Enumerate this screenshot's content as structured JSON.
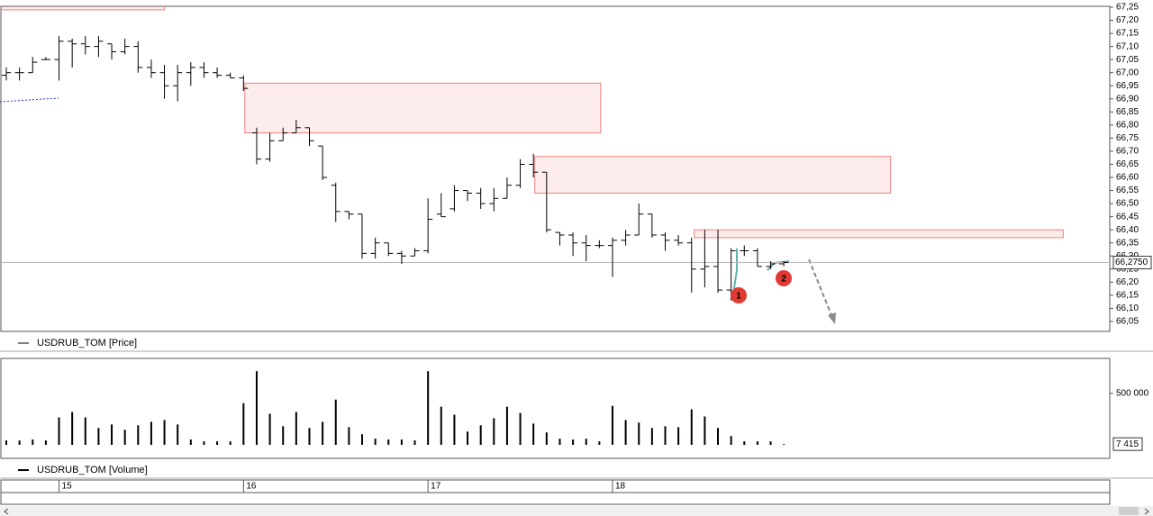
{
  "chart_data": [
    {
      "type": "ohlc",
      "categories": [
        null,
        null,
        null,
        null,
        "15",
        null,
        null,
        null,
        null,
        null,
        null,
        null,
        null,
        null,
        null,
        null,
        null,
        null,
        "16",
        null,
        null,
        null,
        null,
        null,
        null,
        null,
        null,
        null,
        null,
        null,
        null,
        null,
        "17",
        null,
        null,
        null,
        null,
        null,
        null,
        null,
        null,
        null,
        null,
        null,
        null,
        null,
        "18",
        null,
        null,
        null,
        null,
        null,
        null,
        null,
        null,
        null,
        null,
        null,
        null,
        null
      ],
      "series": [
        {
          "name": "USDRUB_TOM [Price]",
          "color": "#000000",
          "open": [
            66.99,
            67.0,
            67.0,
            67.05,
            67.05,
            67.12,
            67.11,
            67.1,
            67.11,
            67.08,
            67.1,
            67.02,
            67.0,
            66.95,
            67.0,
            67.02,
            67.0,
            66.99,
            66.98,
            66.77,
            66.67,
            66.74,
            66.77,
            66.79,
            66.72,
            66.57,
            66.47,
            66.46,
            66.31,
            66.35,
            66.31,
            66.3,
            66.32,
            66.46,
            66.48,
            66.55,
            66.54,
            66.5,
            66.52,
            66.57,
            66.65,
            66.62,
            66.39,
            66.38,
            66.35,
            66.34,
            66.34,
            66.36,
            66.38,
            66.46,
            66.38,
            66.36,
            66.35,
            66.25,
            66.26,
            66.17,
            66.32,
            66.32,
            66.26,
            66.27
          ],
          "high": [
            67.02,
            67.02,
            67.06,
            67.06,
            67.14,
            67.13,
            67.14,
            67.14,
            67.11,
            67.13,
            67.12,
            67.05,
            67.03,
            67.03,
            67.04,
            67.04,
            67.02,
            67.0,
            66.99,
            66.79,
            66.77,
            66.79,
            66.82,
            66.79,
            66.72,
            66.58,
            66.47,
            66.46,
            66.37,
            66.35,
            66.32,
            66.33,
            66.52,
            66.54,
            66.57,
            66.55,
            66.56,
            66.56,
            66.6,
            66.67,
            66.69,
            66.62,
            66.39,
            66.39,
            66.38,
            66.36,
            66.37,
            66.4,
            66.5,
            66.46,
            66.39,
            66.38,
            66.37,
            66.4,
            66.4,
            66.33,
            66.34,
            66.33,
            66.28,
            66.28
          ],
          "low": [
            66.97,
            66.97,
            67.0,
            67.05,
            66.97,
            67.02,
            67.07,
            67.06,
            67.05,
            67.07,
            67.0,
            66.98,
            66.9,
            66.89,
            66.95,
            66.98,
            66.98,
            66.98,
            66.93,
            66.65,
            66.66,
            66.74,
            66.77,
            66.72,
            66.59,
            66.43,
            66.44,
            66.29,
            66.29,
            66.3,
            66.27,
            66.3,
            66.31,
            66.45,
            66.47,
            66.51,
            66.48,
            66.47,
            66.52,
            66.56,
            66.6,
            66.39,
            66.34,
            66.3,
            66.28,
            66.33,
            66.22,
            66.34,
            66.38,
            66.37,
            66.32,
            66.34,
            66.16,
            66.18,
            66.16,
            66.13,
            66.3,
            66.26,
            66.25,
            66.26
          ],
          "close": [
            67.0,
            67.0,
            67.04,
            67.05,
            67.12,
            67.11,
            67.1,
            67.12,
            67.08,
            67.1,
            67.02,
            67.0,
            66.95,
            67.0,
            67.02,
            67.0,
            66.99,
            66.98,
            66.94,
            66.67,
            66.74,
            66.77,
            66.79,
            66.74,
            66.6,
            66.47,
            66.46,
            66.31,
            66.35,
            66.31,
            66.3,
            66.32,
            66.44,
            66.45,
            66.55,
            66.54,
            66.5,
            66.52,
            66.57,
            66.65,
            66.62,
            66.4,
            66.38,
            66.35,
            66.34,
            66.34,
            66.36,
            66.38,
            66.46,
            66.38,
            66.36,
            66.35,
            66.25,
            66.26,
            66.17,
            66.32,
            66.32,
            66.26,
            66.27,
            66.275
          ]
        }
      ],
      "ylim": [
        66.01,
        67.25
      ],
      "yticks": [
        {
          "value": 67.25,
          "label": "67,25"
        },
        {
          "value": 67.2,
          "label": "67,20"
        },
        {
          "value": 67.15,
          "label": "67,15"
        },
        {
          "value": 67.1,
          "label": "67,10"
        },
        {
          "value": 67.05,
          "label": "67,05"
        },
        {
          "value": 67.0,
          "label": "67,00"
        },
        {
          "value": 66.95,
          "label": "66,95"
        },
        {
          "value": 66.9,
          "label": "66,90"
        },
        {
          "value": 66.85,
          "label": "66,85"
        },
        {
          "value": 66.8,
          "label": "66,80"
        },
        {
          "value": 66.75,
          "label": "66,75"
        },
        {
          "value": 66.7,
          "label": "66,70"
        },
        {
          "value": 66.65,
          "label": "66,65"
        },
        {
          "value": 66.6,
          "label": "66,60"
        },
        {
          "value": 66.55,
          "label": "66,55"
        },
        {
          "value": 66.5,
          "label": "66,50"
        },
        {
          "value": 66.45,
          "label": "66,45"
        },
        {
          "value": 66.4,
          "label": "66,40"
        },
        {
          "value": 66.35,
          "label": "66,35"
        },
        {
          "value": 66.3,
          "label": "66,30"
        },
        {
          "value": 66.25,
          "label": "66,25"
        },
        {
          "value": 66.2,
          "label": "66,20"
        },
        {
          "value": 66.15,
          "label": "66,15"
        },
        {
          "value": 66.1,
          "label": "66,10"
        },
        {
          "value": 66.05,
          "label": "66,05"
        }
      ],
      "last_price": {
        "value": 66.275,
        "label": "66,2750"
      },
      "zones": [
        {
          "start": -0.5,
          "end": 12.0,
          "high": 67.28,
          "low": 67.24
        },
        {
          "start": 18.1,
          "end": 45.1,
          "high": 66.96,
          "low": 66.77
        },
        {
          "start": 40.1,
          "end": 67.1,
          "high": 66.68,
          "low": 66.54
        },
        {
          "start": 52.2,
          "end": 80.2,
          "high": 66.4,
          "low": 66.37
        }
      ],
      "annotations": [
        {
          "text": "1"
        },
        {
          "text": "2"
        }
      ]
    },
    {
      "type": "bar",
      "series": [
        {
          "name": "USDRUB_TOM [Volume]",
          "color": "#000000",
          "values": [
            43000,
            43000,
            52000,
            43000,
            267000,
            319000,
            267000,
            164000,
            198000,
            147000,
            190000,
            224000,
            241000,
            198000,
            52000,
            34000,
            34000,
            34000,
            405000,
            716000,
            302000,
            181000,
            319000,
            164000,
            224000,
            440000,
            172000,
            103000,
            60000,
            52000,
            52000,
            43000,
            716000,
            371000,
            293000,
            129000,
            190000,
            259000,
            371000,
            310000,
            207000,
            121000,
            60000,
            52000,
            60000,
            34000,
            379000,
            241000,
            216000,
            164000,
            181000,
            172000,
            345000,
            276000,
            164000,
            86000,
            34000,
            34000,
            34000,
            7415
          ]
        }
      ],
      "ylim": [
        0,
        840000
      ],
      "yticks": [
        {
          "value": 500000,
          "label": "500 000"
        }
      ],
      "last_value": {
        "value": 7415,
        "label": "7 415"
      }
    }
  ]
}
